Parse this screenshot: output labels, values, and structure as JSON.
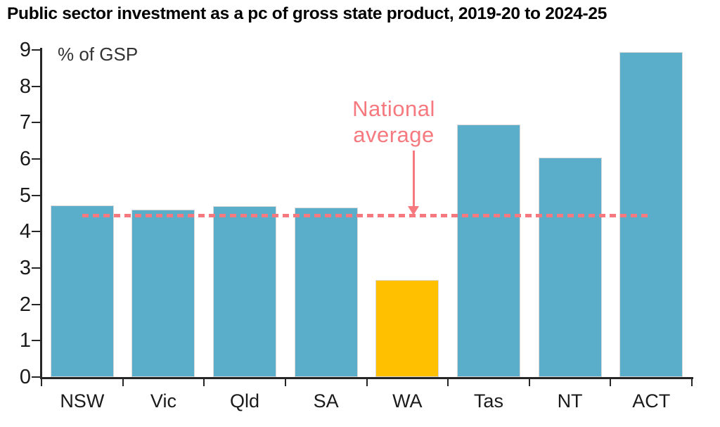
{
  "title": "Public sector investment as a pc of gross state product, 2019-20 to 2024-25",
  "axis_note": "% of GSP",
  "annotation": {
    "line1": "National",
    "line2": "average"
  },
  "colors": {
    "bar": "#5BAEC9",
    "highlight": "#FFC000",
    "annotation_pink": "#F5797E",
    "axis": "#262626",
    "text": "#1a1a1a"
  },
  "chart_data": {
    "type": "bar",
    "title": "Public sector investment as a pc of gross state product, 2019-20 to 2024-25",
    "categories": [
      "NSW",
      "Vic",
      "Qld",
      "SA",
      "WA",
      "Tas",
      "NT",
      "ACT"
    ],
    "values": [
      4.73,
      4.6,
      4.71,
      4.66,
      2.68,
      6.95,
      6.04,
      8.95
    ],
    "highlight_category": "WA",
    "ylabel": "% of GSP",
    "xlabel": "",
    "ylim": [
      0,
      9
    ],
    "yticks": [
      0,
      1,
      2,
      3,
      4,
      5,
      6,
      7,
      8,
      9
    ],
    "grid": false,
    "legend": "none",
    "reference_line": {
      "label": "National average",
      "value": 4.45,
      "style": "dashed"
    }
  }
}
